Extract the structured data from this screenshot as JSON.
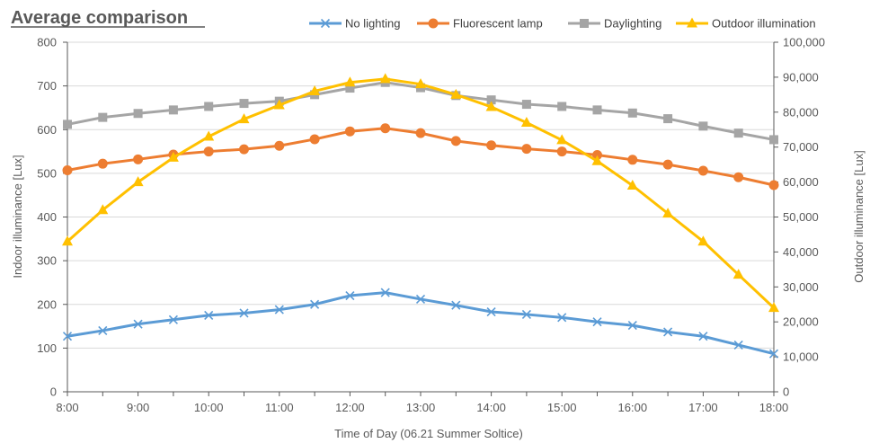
{
  "chart_data": {
    "type": "line",
    "title": "Average comparison",
    "xlabel": "Time of Day (06.21 Summer Soltice)",
    "ylabel": "Indoor illuminance [Lux]",
    "y2label": "Outdoor illuminance [Lux]",
    "ylim": [
      0,
      800
    ],
    "y2lim": [
      0,
      100000
    ],
    "yticks": [
      "0",
      "100",
      "200",
      "300",
      "400",
      "500",
      "600",
      "700",
      "800"
    ],
    "y2ticks": [
      "0",
      "10,000",
      "20,000",
      "30,000",
      "40,000",
      "50,000",
      "60,000",
      "70,000",
      "80,000",
      "90,000",
      "100,000"
    ],
    "xticks": [
      "8:00",
      "9:00",
      "10:00",
      "11:00",
      "12:00",
      "13:00",
      "14:00",
      "15:00",
      "16:00",
      "17:00",
      "18:00"
    ],
    "x": [
      8,
      8.5,
      9,
      9.5,
      10,
      10.5,
      11,
      11.5,
      12,
      12.5,
      13,
      13.5,
      14,
      14.5,
      15,
      15.5,
      16,
      16.5,
      17,
      17.5,
      18
    ],
    "grid": "horizontal",
    "legend_position": "top",
    "series": [
      {
        "name": "No lighting",
        "axis": "left",
        "color": "#5b9bd5",
        "marker": "x",
        "values": [
          127,
          140,
          155,
          165,
          175,
          180,
          188,
          200,
          220,
          227,
          212,
          198,
          183,
          177,
          170,
          160,
          152,
          137,
          127,
          107,
          87
        ]
      },
      {
        "name": "Fluorescent lamp",
        "axis": "left",
        "color": "#ed7d31",
        "marker": "circle",
        "values": [
          507,
          522,
          532,
          543,
          550,
          555,
          563,
          578,
          596,
          603,
          592,
          574,
          564,
          556,
          550,
          542,
          531,
          520,
          506,
          491,
          473
        ]
      },
      {
        "name": "Daylighting",
        "axis": "left",
        "color": "#a5a5a5",
        "marker": "square",
        "values": [
          612,
          628,
          637,
          645,
          653,
          660,
          665,
          680,
          695,
          708,
          696,
          678,
          668,
          658,
          653,
          645,
          638,
          625,
          608,
          592,
          577
        ]
      },
      {
        "name": "Outdoor illumination",
        "axis": "right",
        "color": "#ffc000",
        "marker": "triangle",
        "values": [
          43000,
          52000,
          60000,
          67000,
          73000,
          78000,
          82000,
          86000,
          88500,
          89500,
          88000,
          85000,
          81500,
          77000,
          72000,
          66000,
          59000,
          51000,
          43000,
          33500,
          24000
        ]
      }
    ]
  }
}
